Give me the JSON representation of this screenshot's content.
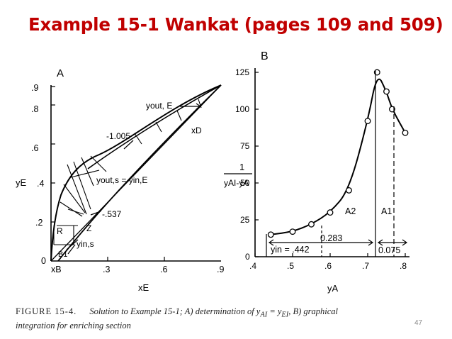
{
  "title": "Example 15-1 Wankat (pages 109 and 509)",
  "page_number": "47",
  "caption": {
    "figure": "FIGURE 15-4.",
    "line1": "Solution to Example 15-1; A) determination of y",
    "sub1": "AI",
    "mid": " = y",
    "sub2": "EI",
    "line1_end": ", B) graphical",
    "line2": "integration for enriching section"
  },
  "panel_a": {
    "letter": "A",
    "x_ticks": [
      "xB",
      ".3",
      ".6",
      ".9"
    ],
    "y_ticks": [
      "0",
      ".2",
      ".4",
      ".6",
      ".8",
      ".9"
    ],
    "x_label": "xE",
    "y_label": "yE",
    "annotations": {
      "yout_e": "yout, E",
      "xd": "xD",
      "slope1": "-1.005",
      "yout_s": "yout,s = yin,E",
      "slope2": "-.537",
      "z": "Z",
      "r": "R",
      "yin_s": "yin,s",
      "b1": "B1"
    }
  },
  "panel_b": {
    "letter": "B",
    "x_ticks": [
      ".4",
      ".5",
      ".6",
      ".7",
      ".8"
    ],
    "y_ticks": [
      "0",
      "25",
      "50",
      "75",
      "100",
      "125"
    ],
    "x_label": "yA",
    "y_label_num": "1",
    "y_label_den": "yAI-yA",
    "annotations": {
      "a2": "A2",
      "a1": "A1",
      "v283": "0.283",
      "v075": "0.075",
      "yin": "yin = .442"
    }
  },
  "chart_data": {
    "type": "scatter",
    "title": "",
    "xlabel": "yA",
    "ylabel": "1/(yAI-yA)",
    "xlim": [
      0.4,
      0.8
    ],
    "ylim": [
      0,
      125
    ],
    "series": [
      {
        "x": [
          0.442,
          0.5,
          0.55,
          0.6,
          0.65,
          0.7,
          0.725,
          0.75,
          0.765,
          0.8
        ],
        "y": [
          15,
          17,
          22,
          30,
          45,
          92,
          125,
          112,
          100,
          84
        ]
      }
    ]
  }
}
